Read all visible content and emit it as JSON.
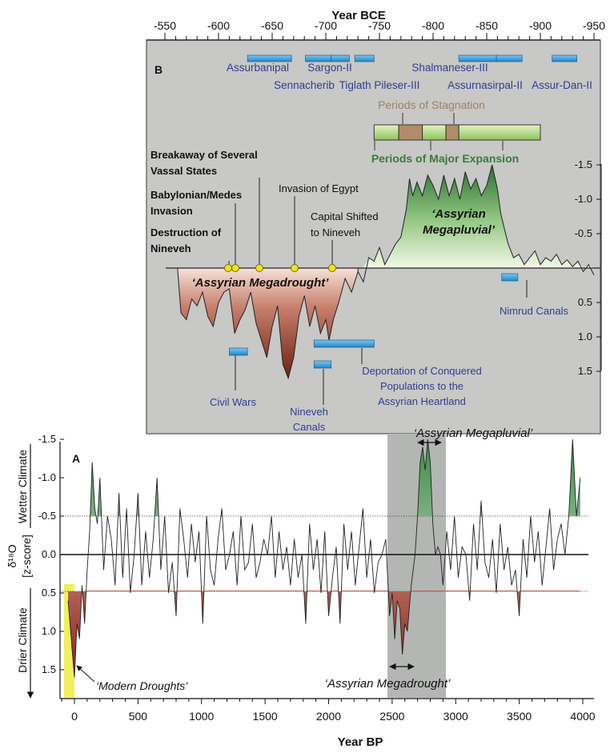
{
  "chart_data": [
    {
      "panel": "B",
      "type": "area",
      "xlabel": "Year BCE",
      "x_ticks": [
        "-550",
        "-600",
        "-650",
        "-700",
        "-750",
        "-800",
        "-850",
        "-900",
        "-950"
      ],
      "y_ticks": [
        "-1.5",
        "-1.0",
        "-0.5",
        "0.5",
        "1.0",
        "1.5"
      ],
      "xlim": [
        -550,
        -950
      ],
      "ylim": [
        -1.5,
        1.5
      ],
      "series_x": [
        -562,
        -565,
        -570,
        -575,
        -580,
        -585,
        -590,
        -595,
        -600,
        -605,
        -610,
        -615,
        -620,
        -625,
        -630,
        -635,
        -640,
        -645,
        -650,
        -655,
        -660,
        -665,
        -670,
        -675,
        -680,
        -685,
        -690,
        -695,
        -700,
        -703,
        -707,
        -712,
        -718,
        -724,
        -730,
        -735,
        -740,
        -745,
        -750,
        -755,
        -760,
        -765,
        -770,
        -775,
        -778,
        -781,
        -785,
        -790,
        -795,
        -800,
        -805,
        -810,
        -815,
        -820,
        -825,
        -830,
        -835,
        -840,
        -845,
        -850,
        -855,
        -860,
        -863,
        -866,
        -870,
        -875,
        -880,
        -885,
        -890,
        -895,
        -900,
        -905,
        -910,
        -915,
        -920,
        -925,
        -930,
        -935,
        -940,
        -945,
        -950
      ],
      "series_y": [
        0.05,
        0.65,
        0.75,
        0.45,
        0.55,
        0.35,
        0.7,
        0.85,
        0.5,
        0.35,
        0.3,
        0.95,
        0.75,
        0.6,
        0.35,
        0.8,
        1.05,
        1.3,
        0.85,
        0.55,
        1.4,
        1.6,
        1.3,
        0.7,
        0.4,
        0.85,
        0.55,
        0.95,
        0.75,
        1.05,
        0.75,
        0.5,
        0.15,
        0.35,
        0.05,
        0.2,
        -0.15,
        -0.1,
        -0.3,
        -0.05,
        -0.2,
        -0.35,
        -0.45,
        -0.85,
        -1.3,
        -1.05,
        -1.25,
        -1.05,
        -1.35,
        -1.2,
        -1.0,
        -1.35,
        -1.05,
        -1.3,
        -1.0,
        -1.4,
        -1.15,
        -1.3,
        -1.05,
        -1.2,
        -1.5,
        -1.15,
        -0.8,
        -0.6,
        -0.35,
        -0.15,
        -0.2,
        -0.05,
        -0.15,
        -0.25,
        -0.05,
        -0.15,
        -0.1,
        -0.2,
        -0.05,
        -0.12,
        -0.02,
        -0.1,
        0.05,
        -0.05,
        0.1
      ],
      "kings": [
        {
          "name": "Assurbanipal",
          "from": -627,
          "to": -668
        },
        {
          "name": "Sennacherib",
          "from": -681,
          "to": -705
        },
        {
          "name": "Sargon-II",
          "from": -705,
          "to": -722
        },
        {
          "name": "Tiglath Pileser-III",
          "from": -727,
          "to": -745
        },
        {
          "name": "Shalmaneser-III",
          "from": -824,
          "to": -859
        },
        {
          "name": "Assurnasirpal-II",
          "from": -859,
          "to": -883
        },
        {
          "name": "Assur-Dan-II",
          "from": -911,
          "to": -934
        }
      ],
      "periods": [
        {
          "type": "expansion",
          "from": -745,
          "to": -768
        },
        {
          "type": "stagnation",
          "from": -768,
          "to": -790
        },
        {
          "type": "expansion",
          "from": -790,
          "to": -812
        },
        {
          "type": "stagnation",
          "from": -812,
          "to": -824
        },
        {
          "type": "expansion",
          "from": -824,
          "to": -900
        }
      ],
      "events": [
        {
          "year": -612,
          "lines": [
            "Destruction of",
            "Nineveh"
          ],
          "bold": true
        },
        {
          "year": -614,
          "lines": [
            "Babylonian/Medes",
            "Invasion"
          ],
          "bold": true
        },
        {
          "year": -650,
          "lines": [
            "Breakaway of Several",
            "Vassal States"
          ],
          "bold": true
        },
        {
          "year": -671,
          "lines": [
            "Invasion of Egypt"
          ],
          "bold": false
        },
        {
          "year": -705,
          "lines": [
            "Capital Shifted",
            "to Nineveh"
          ],
          "bold": false
        }
      ],
      "blue_bars": [
        {
          "label": "Civil Wars",
          "from": -610,
          "to": -627
        },
        {
          "label": "Deportation of Conquered Populations to the Assyrian Heartland",
          "from": -689,
          "to": -745
        },
        {
          "label": "Nineveh Canals",
          "from": -689,
          "to": -705
        },
        {
          "label": "Nimrud Canals",
          "from": -864,
          "to": -879
        }
      ]
    },
    {
      "panel": "A",
      "type": "line",
      "xlabel": "Year BP",
      "ylabel": "δ¹⁸O [z-score]",
      "x_ticks": [
        "0",
        "500",
        "1000",
        "1500",
        "2000",
        "2500",
        "3000",
        "3500",
        "4000"
      ],
      "y_ticks": [
        "-1.5",
        "-1.0",
        "-0.5",
        "0.0",
        "0.5",
        "1.0",
        "1.5"
      ],
      "xlim": [
        -100,
        4000
      ],
      "ylim": [
        -1.5,
        2.0
      ],
      "reference_lines": [
        -0.5,
        0.0,
        0.5
      ],
      "highlight_band": [
        2460,
        2920
      ],
      "modern_band": [
        -50,
        0
      ],
      "series_x": [
        -50,
        -20,
        0,
        20,
        40,
        60,
        80,
        100,
        120,
        140,
        160,
        180,
        200,
        230,
        260,
        290,
        320,
        350,
        380,
        410,
        440,
        470,
        500,
        530,
        560,
        590,
        620,
        650,
        680,
        710,
        740,
        770,
        800,
        830,
        860,
        890,
        920,
        950,
        980,
        1010,
        1040,
        1070,
        1100,
        1130,
        1160,
        1190,
        1220,
        1250,
        1280,
        1310,
        1340,
        1370,
        1400,
        1430,
        1460,
        1490,
        1520,
        1550,
        1580,
        1610,
        1640,
        1670,
        1700,
        1730,
        1760,
        1790,
        1820,
        1850,
        1880,
        1910,
        1940,
        1970,
        2000,
        2030,
        2060,
        2090,
        2120,
        2150,
        2180,
        2210,
        2240,
        2270,
        2300,
        2330,
        2360,
        2390,
        2420,
        2450,
        2480,
        2500,
        2520,
        2540,
        2560,
        2580,
        2600,
        2620,
        2650,
        2680,
        2700,
        2720,
        2740,
        2760,
        2780,
        2800,
        2820,
        2840,
        2860,
        2880,
        2900,
        2930,
        2960,
        2990,
        3020,
        3050,
        3080,
        3110,
        3140,
        3170,
        3200,
        3230,
        3260,
        3290,
        3320,
        3350,
        3380,
        3410,
        3440,
        3470,
        3500,
        3530,
        3560,
        3590,
        3620,
        3650,
        3680,
        3710,
        3740,
        3770,
        3800,
        3830,
        3860,
        3890,
        3920,
        3950,
        3980
      ],
      "series_y": [
        0.6,
        1.2,
        1.6,
        0.9,
        1.1,
        0.4,
        0.9,
        0.2,
        -0.3,
        -1.2,
        -0.6,
        -0.4,
        -1.0,
        0.2,
        -0.5,
        -0.2,
        0.4,
        -0.8,
        0.3,
        -0.6,
        0.5,
        0.0,
        -0.8,
        0.4,
        -0.3,
        0.3,
        -0.2,
        -1.0,
        0.2,
        -0.5,
        0.5,
        0.1,
        0.8,
        -0.6,
        -0.2,
        0.3,
        -0.4,
        0.1,
        -0.3,
        0.9,
        -0.5,
        0.2,
        0.4,
        -0.2,
        -0.6,
        0.2,
        0.0,
        -0.3,
        0.4,
        -0.5,
        0.2,
        0.1,
        -0.4,
        0.3,
        0.1,
        -0.2,
        0.0,
        -0.5,
        0.3,
        -0.3,
        0.2,
        -0.1,
        0.4,
        -0.2,
        0.3,
        0.0,
        0.9,
        -0.4,
        0.2,
        -0.2,
        0.5,
        -0.3,
        0.8,
        0.3,
        -0.1,
        0.9,
        -0.4,
        0.2,
        -0.3,
        0.4,
        -0.1,
        -0.6,
        0.3,
        -0.2,
        0.5,
        0.1,
        0.0,
        -0.2,
        0.8,
        0.5,
        1.1,
        0.6,
        0.7,
        1.3,
        0.9,
        1.0,
        0.4,
        0.0,
        -0.5,
        -1.2,
        -1.4,
        -1.1,
        -1.5,
        -1.2,
        -0.4,
        0.0,
        -0.1,
        0.0,
        0.4,
        -0.3,
        0.2,
        -0.5,
        0.3,
        -0.1,
        0.0,
        0.6,
        -0.4,
        0.2,
        -0.7,
        0.1,
        0.3,
        -0.2,
        0.5,
        -0.4,
        0.2,
        -0.1,
        0.4,
        0.2,
        0.8,
        -0.2,
        0.3,
        -0.5,
        0.1,
        -0.3,
        0.4,
        -0.1,
        -0.6,
        0.2,
        -0.2,
        -0.4,
        0.0,
        -0.5,
        -1.5,
        -0.5,
        -1.0
      ]
    }
  ],
  "labels": {
    "assyrian_megadrought": "‘Assyrian Megadrought’",
    "assyrian_megapluvial_b": [
      "‘Assyrian",
      "Megapluvial’"
    ],
    "periods_of_stagnation": "Periods of Stagnation",
    "periods_of_major_expansion": "Periods of Major Expansion",
    "nineveh_canals": [
      "Nineveh",
      "Canals"
    ],
    "deportation": [
      "Deportation of Conquered",
      "Populations to the",
      "Assyrian Heartland"
    ],
    "wetter_climate": "Wetter Climate",
    "drier_climate": "Drier Climate",
    "delta_o": "δ¹⁸O",
    "zscore": "[z-score]",
    "assyrian_megapluvial_a": "‘Assyrian Megapluvial’",
    "assyrian_megadrought_a": "‘Assyrian Megadrought’",
    "modern_droughts": "‘Modern Droughts’",
    "panel_b": "B",
    "panel_a": "A"
  },
  "colors": {
    "panel_b_bg": "#c8c8c6",
    "band": "#b4b6b4",
    "drought_dark": "#7a2418",
    "drought_light": "#f1d3c8",
    "pluvial_dark": "#2f7a3a",
    "pluvial_light": "#e9f5d8",
    "king_bar": "#3b9fd8",
    "text_blue": "#2f3f8f",
    "expansion": "#b5d77e",
    "stagnation": "#b08d68",
    "event_dot": "#f5e11e",
    "modern_band": "#f1ef5c"
  }
}
